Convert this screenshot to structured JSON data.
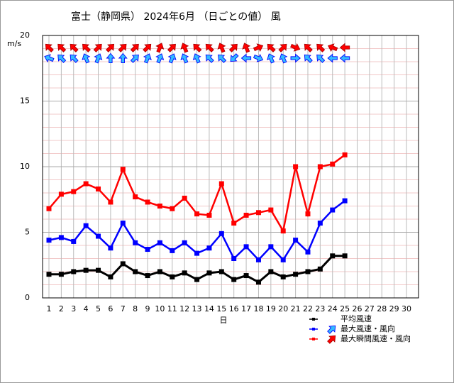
{
  "chart_data": {
    "type": "line",
    "title": "富士（静岡県） 2024年6月 （日ごとの値） 風",
    "y_label": "m/s",
    "x_label": "日",
    "categories": [
      "1",
      "2",
      "3",
      "4",
      "5",
      "6",
      "7",
      "8",
      "9",
      "10",
      "11",
      "12",
      "13",
      "14",
      "15",
      "16",
      "17",
      "18",
      "19",
      "20",
      "21",
      "22",
      "23",
      "24",
      "25",
      "26",
      "27",
      "28",
      "29",
      "30"
    ],
    "ylim": [
      0,
      20
    ],
    "yticks": [
      0,
      5,
      10,
      15,
      20
    ],
    "grid": true,
    "series": [
      {
        "name": "平均風速",
        "color": "#000000",
        "values": [
          1.8,
          1.8,
          2.0,
          2.1,
          2.1,
          1.6,
          2.6,
          2.0,
          1.7,
          2.0,
          1.6,
          1.9,
          1.4,
          1.9,
          2.0,
          1.4,
          1.7,
          1.2,
          2.0,
          1.6,
          1.8,
          2.0,
          2.2,
          3.2,
          3.2,
          null,
          null,
          null,
          null,
          null
        ]
      },
      {
        "name": "最大風速・風向",
        "color": "#0000ff",
        "values": [
          4.4,
          4.6,
          4.3,
          5.5,
          4.7,
          3.8,
          5.7,
          4.2,
          3.7,
          4.2,
          3.6,
          4.2,
          3.4,
          3.8,
          4.9,
          3.0,
          3.9,
          2.9,
          3.9,
          2.9,
          4.4,
          3.5,
          5.7,
          6.7,
          7.4,
          null,
          null,
          null,
          null,
          null
        ],
        "directions": [
          292,
          315,
          315,
          337,
          22,
          0,
          0,
          45,
          22,
          22,
          22,
          337,
          337,
          315,
          315,
          225,
          270,
          112,
          337,
          337,
          90,
          315,
          315,
          270,
          270,
          null,
          null,
          null,
          null,
          null
        ]
      },
      {
        "name": "最大瞬間風速・風向",
        "color": "#ff0000",
        "values": [
          6.8,
          7.9,
          8.1,
          8.7,
          8.3,
          7.3,
          9.8,
          7.7,
          7.3,
          7.0,
          6.8,
          7.6,
          6.4,
          6.3,
          8.7,
          5.7,
          6.3,
          6.5,
          6.7,
          5.1,
          10.0,
          6.4,
          10.0,
          10.2,
          10.9,
          null,
          null,
          null,
          null,
          null
        ],
        "directions": [
          315,
          315,
          315,
          315,
          45,
          45,
          45,
          45,
          45,
          22,
          45,
          337,
          315,
          315,
          337,
          45,
          337,
          67,
          315,
          45,
          112,
          315,
          315,
          292,
          270,
          null,
          null,
          null,
          null,
          null
        ]
      }
    ]
  }
}
